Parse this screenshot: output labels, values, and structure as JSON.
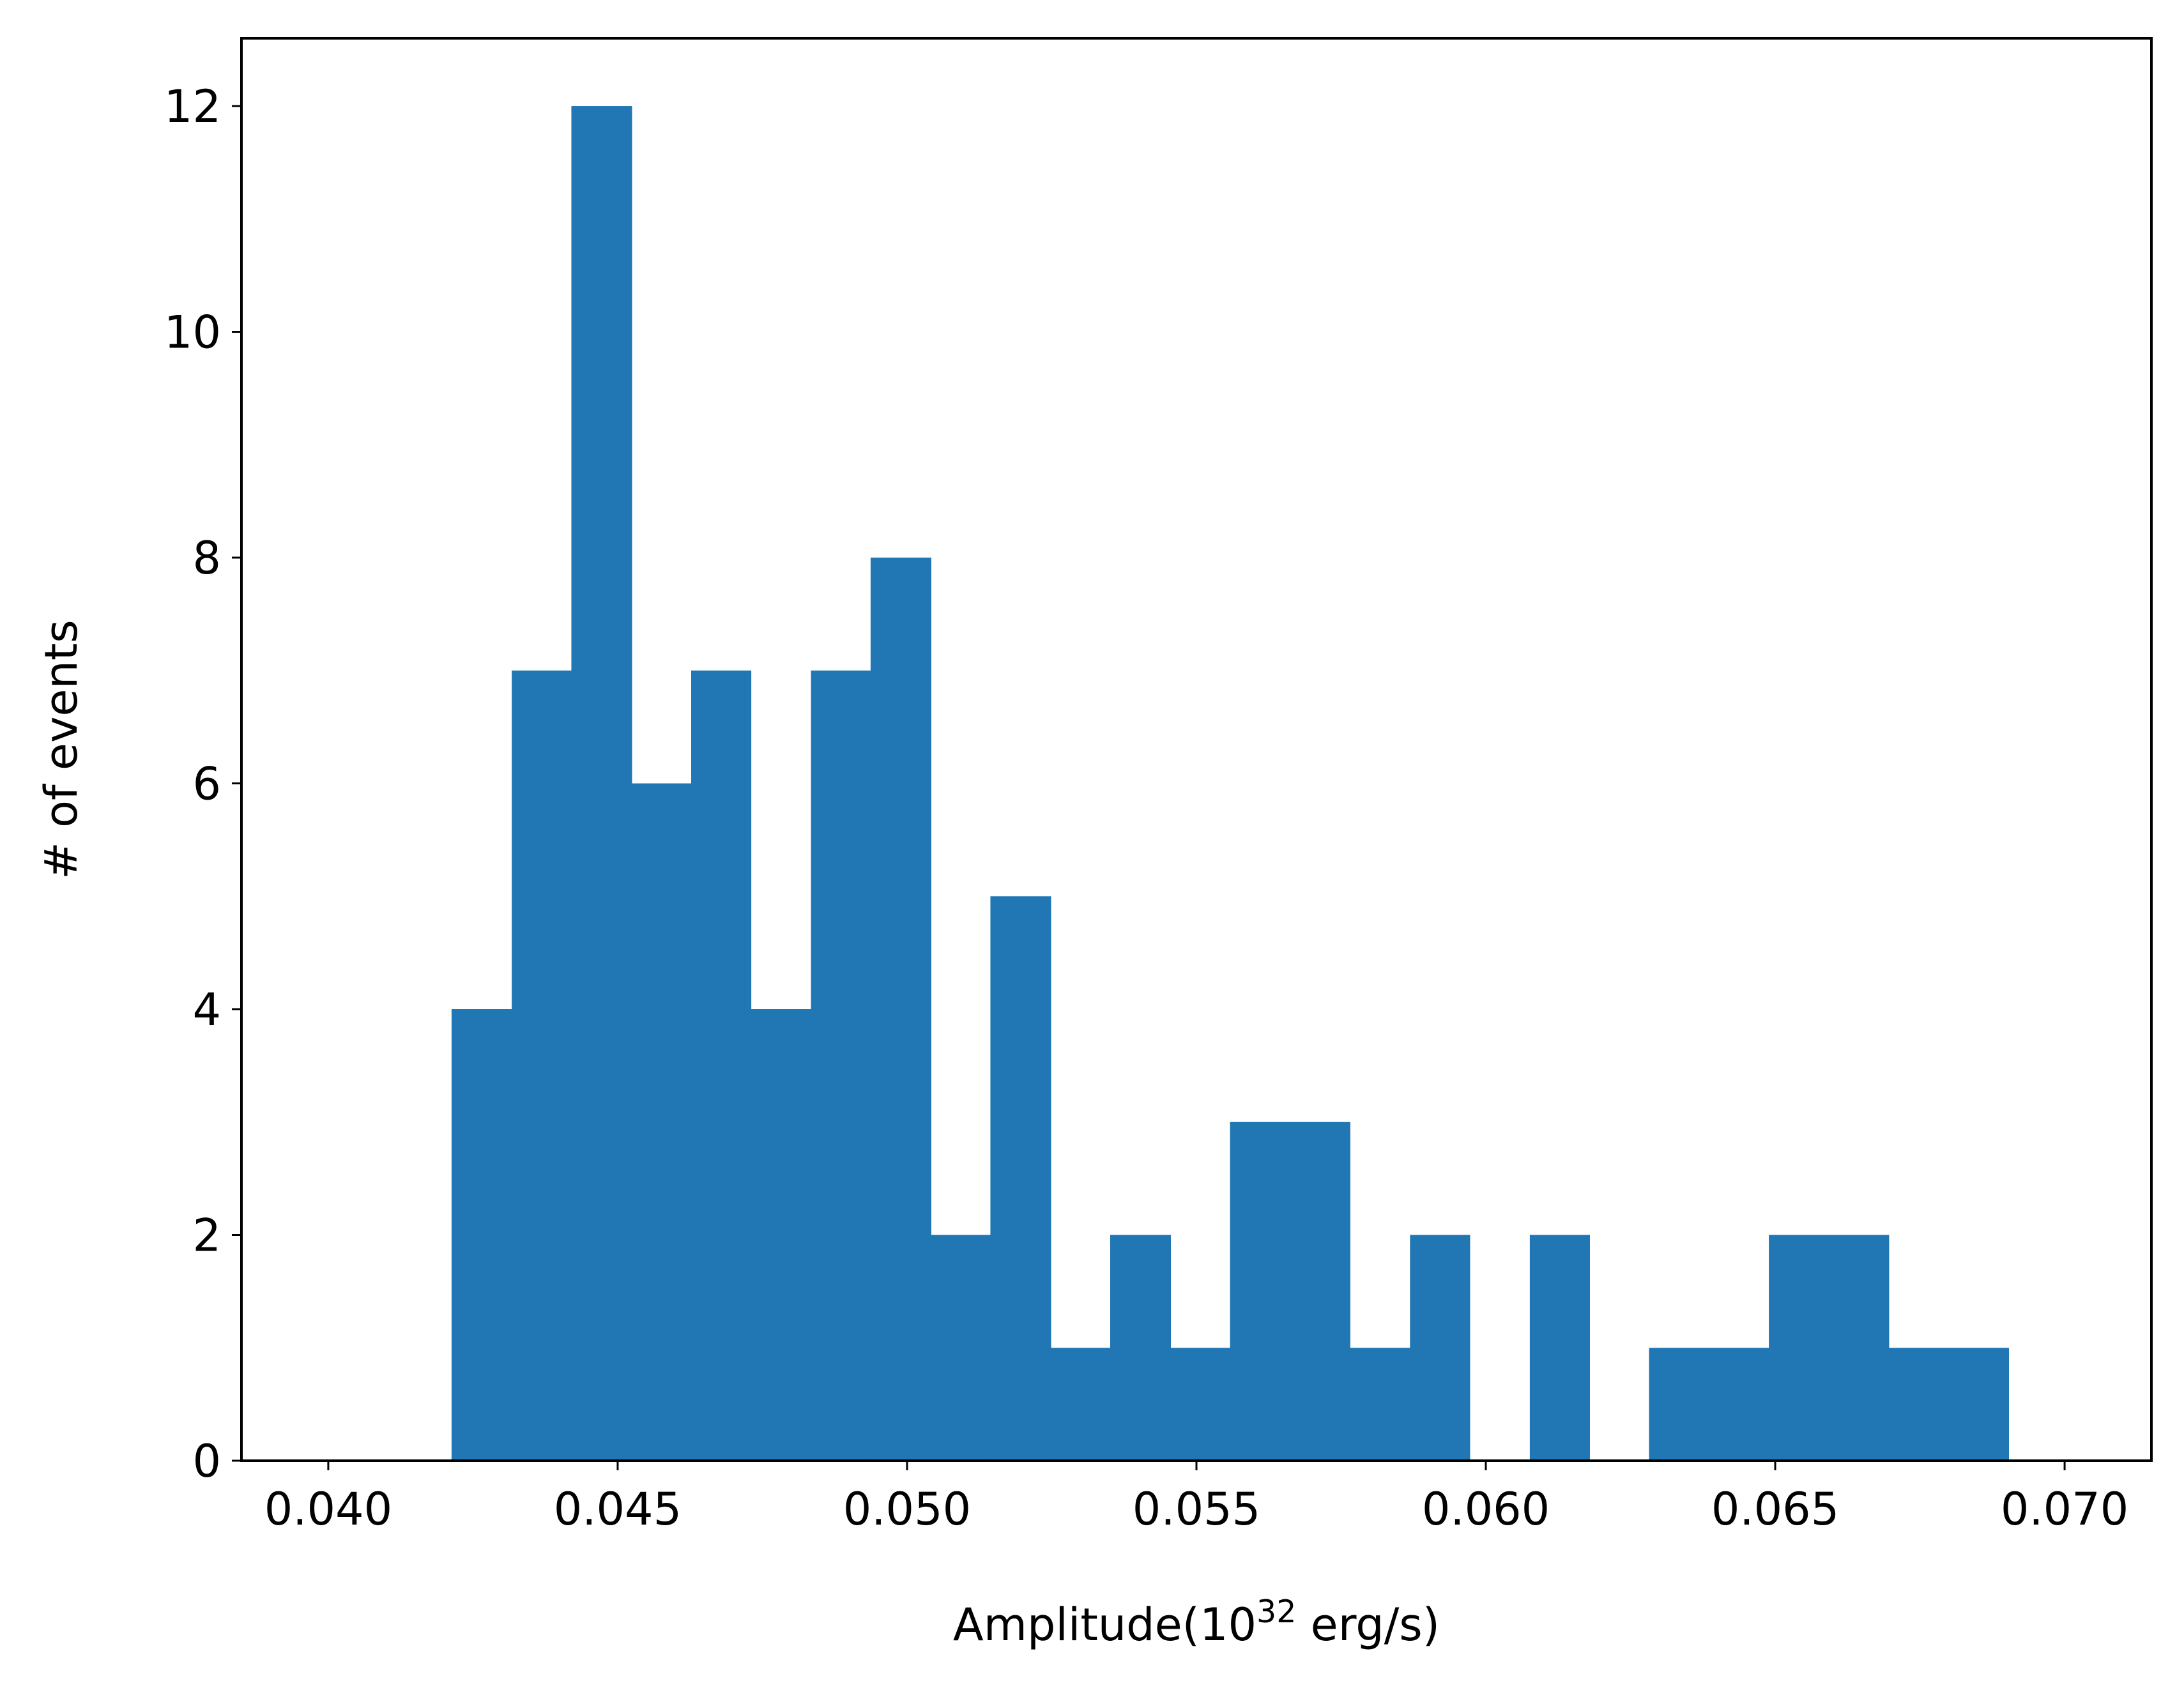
{
  "chart_data": {
    "type": "bar",
    "title": "",
    "xlabel": {
      "prefix": "Amplitude(10",
      "superscript": "32",
      "suffix": " erg/s)"
    },
    "ylabel": "# of events",
    "xlim": [
      0.0385,
      0.0715
    ],
    "ylim": [
      0,
      12.6
    ],
    "xticks": [
      {
        "value": 0.04,
        "label": "0.040"
      },
      {
        "value": 0.045,
        "label": "0.045"
      },
      {
        "value": 0.05,
        "label": "0.050"
      },
      {
        "value": 0.055,
        "label": "0.055"
      },
      {
        "value": 0.06,
        "label": "0.060"
      },
      {
        "value": 0.065,
        "label": "0.065"
      },
      {
        "value": 0.07,
        "label": "0.070"
      }
    ],
    "yticks": [
      {
        "value": 0,
        "label": "0"
      },
      {
        "value": 2,
        "label": "2"
      },
      {
        "value": 4,
        "label": "4"
      },
      {
        "value": 6,
        "label": "6"
      },
      {
        "value": 8,
        "label": "8"
      },
      {
        "value": 10,
        "label": "10"
      },
      {
        "value": 12,
        "label": "12"
      }
    ],
    "bin_edges": [
      0.04213,
      0.04317,
      0.0442,
      0.04524,
      0.04627,
      0.0473,
      0.04834,
      0.04937,
      0.05041,
      0.05144,
      0.05248,
      0.05351,
      0.05455,
      0.05558,
      0.05662,
      0.05765,
      0.05869,
      0.05972,
      0.06076,
      0.06179,
      0.06282,
      0.06386,
      0.06489,
      0.06593,
      0.06696,
      0.068,
      0.06903
    ],
    "counts": [
      4,
      7,
      12,
      6,
      7,
      4,
      7,
      8,
      2,
      5,
      1,
      2,
      1,
      3,
      3,
      1,
      2,
      0,
      2,
      0,
      1,
      1,
      2,
      2,
      1,
      1
    ],
    "bar_color": "#2077b4",
    "grid": false,
    "legend": "none"
  }
}
